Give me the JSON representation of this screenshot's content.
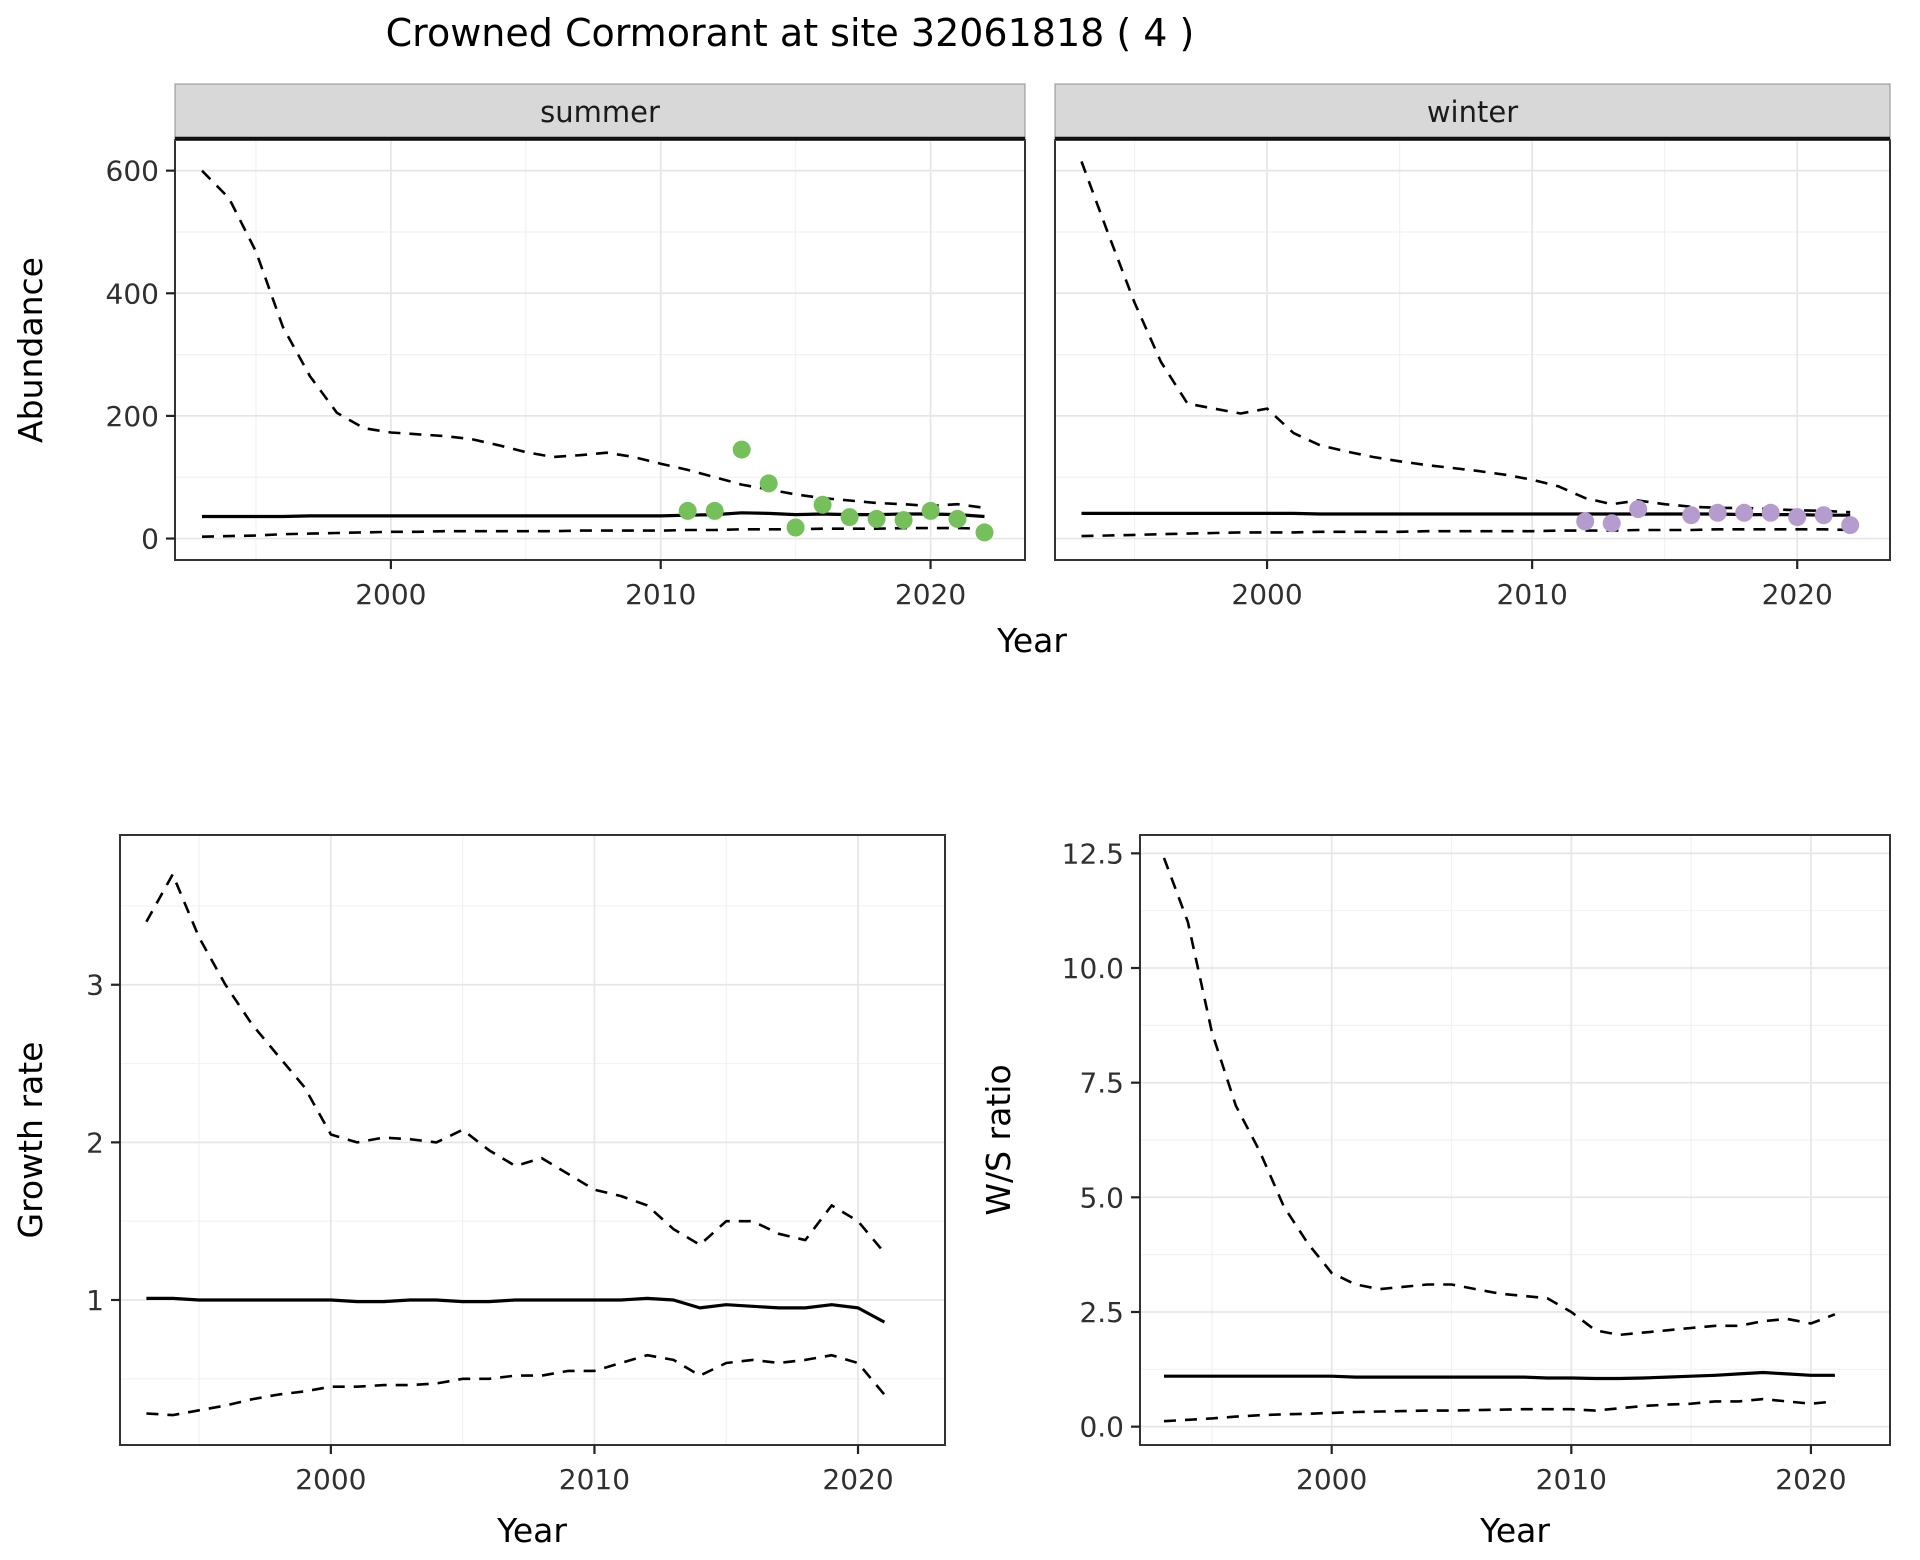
{
  "title": "Crowned Cormorant at site 32061818 ( 4 )",
  "palette": {
    "summer": "#76c05c",
    "winter": "#b59cce",
    "ci_line": "#000000",
    "median_line": "#000000",
    "strip_bg": "#d8d8d8",
    "strip_border": "#8f8f8f",
    "strip_underline": "#111111",
    "panel_bg": "#ffffff",
    "panel_border": "#333333",
    "grid_major": "#e6e6e6",
    "grid_minor": "#f2f2f2",
    "tick_mark": "#222222"
  },
  "chart_data": [
    {
      "id": "abundance-summer",
      "type": "line",
      "facet_label": "summer",
      "xlabel": "Year",
      "ylabel": "Abundance",
      "xlim": [
        1992,
        2023.5
      ],
      "ylim": [
        -35,
        650
      ],
      "xticks": [
        {
          "v": 2000,
          "label": "2000"
        },
        {
          "v": 2010,
          "label": "2010"
        },
        {
          "v": 2020,
          "label": "2020"
        }
      ],
      "yticks": [
        {
          "v": 0,
          "label": "0"
        },
        {
          "v": 200,
          "label": "200"
        },
        {
          "v": 400,
          "label": "400"
        },
        {
          "v": 600,
          "label": "600"
        }
      ],
      "years": [
        1993,
        1994,
        1995,
        1996,
        1997,
        1998,
        1999,
        2000,
        2001,
        2002,
        2003,
        2004,
        2005,
        2006,
        2007,
        2008,
        2009,
        2010,
        2011,
        2012,
        2013,
        2014,
        2015,
        2016,
        2017,
        2018,
        2019,
        2020,
        2021,
        2022
      ],
      "series": [
        {
          "name": "upper-ci",
          "style": "dashed",
          "y": [
            600,
            555,
            468,
            345,
            265,
            205,
            180,
            173,
            170,
            167,
            162,
            152,
            141,
            133,
            136,
            140,
            133,
            122,
            112,
            100,
            88,
            80,
            72,
            66,
            62,
            58,
            56,
            53,
            56,
            50
          ]
        },
        {
          "name": "median",
          "style": "solid",
          "y": [
            36,
            36,
            36,
            36,
            37,
            37,
            37,
            37,
            37,
            37,
            37,
            37,
            37,
            37,
            37,
            37,
            37,
            37,
            38,
            39,
            42,
            41,
            39,
            40,
            39,
            39,
            40,
            40,
            39,
            36
          ]
        },
        {
          "name": "lower-ci",
          "style": "dashed",
          "y": [
            3,
            4,
            5,
            7,
            8,
            9,
            10,
            11,
            11,
            12,
            12,
            12,
            12,
            12,
            13,
            13,
            13,
            13,
            14,
            14,
            15,
            15,
            15,
            16,
            16,
            16,
            17,
            17,
            17,
            16
          ]
        },
        {
          "name": "observed",
          "style": "points",
          "color_key": "summer",
          "x": [
            2011,
            2012,
            2013,
            2014,
            2015,
            2016,
            2017,
            2018,
            2019,
            2020,
            2021,
            2022
          ],
          "y": [
            45,
            45,
            145,
            90,
            18,
            55,
            35,
            32,
            30,
            45,
            32,
            10
          ]
        }
      ]
    },
    {
      "id": "abundance-winter",
      "type": "line",
      "facet_label": "winter",
      "xlabel": "Year",
      "ylabel": "Abundance",
      "xlim": [
        1992,
        2023.5
      ],
      "ylim": [
        -35,
        650
      ],
      "xticks": [
        {
          "v": 2000,
          "label": "2000"
        },
        {
          "v": 2010,
          "label": "2010"
        },
        {
          "v": 2020,
          "label": "2020"
        }
      ],
      "yticks": [
        {
          "v": 0,
          "label": "0"
        },
        {
          "v": 200,
          "label": "200"
        },
        {
          "v": 400,
          "label": "400"
        },
        {
          "v": 600,
          "label": "600"
        }
      ],
      "years": [
        1993,
        1994,
        1995,
        1996,
        1997,
        1998,
        1999,
        2000,
        2001,
        2002,
        2003,
        2004,
        2005,
        2006,
        2007,
        2008,
        2009,
        2010,
        2011,
        2012,
        2013,
        2014,
        2015,
        2016,
        2017,
        2018,
        2019,
        2020,
        2021,
        2022
      ],
      "series": [
        {
          "name": "upper-ci",
          "style": "dashed",
          "y": [
            615,
            498,
            385,
            288,
            220,
            212,
            204,
            212,
            172,
            152,
            142,
            133,
            126,
            120,
            115,
            110,
            104,
            96,
            85,
            66,
            56,
            62,
            56,
            52,
            50,
            50,
            48,
            46,
            45,
            43
          ]
        },
        {
          "name": "median",
          "style": "solid",
          "y": [
            41,
            41,
            41,
            41,
            41,
            41,
            41,
            41,
            41,
            40,
            40,
            40,
            40,
            40,
            40,
            40,
            40,
            40,
            40,
            40,
            40,
            40,
            40,
            40,
            40,
            39,
            39,
            39,
            38,
            38
          ]
        },
        {
          "name": "lower-ci",
          "style": "dashed",
          "y": [
            4,
            5,
            6,
            7,
            8,
            9,
            10,
            10,
            10,
            11,
            11,
            11,
            11,
            12,
            12,
            12,
            12,
            12,
            13,
            13,
            13,
            14,
            14,
            14,
            15,
            15,
            15,
            15,
            15,
            14
          ]
        },
        {
          "name": "observed",
          "style": "points",
          "color_key": "winter",
          "x": [
            2012,
            2013,
            2014,
            2016,
            2017,
            2018,
            2019,
            2020,
            2021,
            2022
          ],
          "y": [
            28,
            25,
            48,
            38,
            42,
            42,
            42,
            35,
            38,
            22
          ]
        }
      ]
    },
    {
      "id": "growth-rate",
      "type": "line",
      "facet_label": null,
      "xlabel": "Year",
      "ylabel": "Growth rate",
      "xlim": [
        1992,
        2023.3
      ],
      "ylim": [
        0.08,
        3.95
      ],
      "xticks": [
        {
          "v": 2000,
          "label": "2000"
        },
        {
          "v": 2010,
          "label": "2010"
        },
        {
          "v": 2020,
          "label": "2020"
        }
      ],
      "yticks": [
        {
          "v": 1,
          "label": "1"
        },
        {
          "v": 2,
          "label": "2"
        },
        {
          "v": 3,
          "label": "3"
        }
      ],
      "years": [
        1993,
        1994,
        1995,
        1996,
        1997,
        1998,
        1999,
        2000,
        2001,
        2002,
        2003,
        2004,
        2005,
        2006,
        2007,
        2008,
        2009,
        2010,
        2011,
        2012,
        2013,
        2014,
        2015,
        2016,
        2017,
        2018,
        2019,
        2020,
        2021
      ],
      "series": [
        {
          "name": "upper-ci",
          "style": "dashed",
          "y": [
            3.4,
            3.7,
            3.3,
            3.0,
            2.75,
            2.55,
            2.35,
            2.05,
            2.0,
            2.03,
            2.02,
            2.0,
            2.08,
            1.95,
            1.85,
            1.9,
            1.8,
            1.7,
            1.66,
            1.6,
            1.45,
            1.35,
            1.5,
            1.5,
            1.42,
            1.38,
            1.6,
            1.5,
            1.3
          ]
        },
        {
          "name": "median",
          "style": "solid",
          "y": [
            1.01,
            1.01,
            1.0,
            1.0,
            1.0,
            1.0,
            1.0,
            1.0,
            0.99,
            0.99,
            1.0,
            1.0,
            0.99,
            0.99,
            1.0,
            1.0,
            1.0,
            1.0,
            1.0,
            1.01,
            1.0,
            0.95,
            0.97,
            0.96,
            0.95,
            0.95,
            0.97,
            0.95,
            0.86
          ]
        },
        {
          "name": "lower-ci",
          "style": "dashed",
          "y": [
            0.28,
            0.27,
            0.3,
            0.33,
            0.37,
            0.4,
            0.42,
            0.45,
            0.45,
            0.46,
            0.46,
            0.47,
            0.5,
            0.5,
            0.52,
            0.52,
            0.55,
            0.55,
            0.6,
            0.65,
            0.62,
            0.52,
            0.6,
            0.62,
            0.6,
            0.62,
            0.65,
            0.6,
            0.4
          ]
        }
      ]
    },
    {
      "id": "ws-ratio",
      "type": "line",
      "facet_label": null,
      "xlabel": "Year",
      "ylabel": "W/S ratio",
      "xlim": [
        1992,
        2023.3
      ],
      "ylim": [
        -0.4,
        12.9
      ],
      "xticks": [
        {
          "v": 2000,
          "label": "2000"
        },
        {
          "v": 2010,
          "label": "2010"
        },
        {
          "v": 2020,
          "label": "2020"
        }
      ],
      "yticks": [
        {
          "v": 0,
          "label": "0.0"
        },
        {
          "v": 2.5,
          "label": "2.5"
        },
        {
          "v": 5,
          "label": "5.0"
        },
        {
          "v": 7.5,
          "label": "7.5"
        },
        {
          "v": 10,
          "label": "10.0"
        },
        {
          "v": 12.5,
          "label": "12.5"
        }
      ],
      "years": [
        1993,
        1994,
        1995,
        1996,
        1997,
        1998,
        1999,
        2000,
        2001,
        2002,
        2003,
        2004,
        2005,
        2006,
        2007,
        2008,
        2009,
        2010,
        2011,
        2012,
        2013,
        2014,
        2015,
        2016,
        2017,
        2018,
        2019,
        2020,
        2021
      ],
      "series": [
        {
          "name": "upper-ci",
          "style": "dashed",
          "y": [
            12.4,
            11.0,
            8.6,
            7.0,
            6.0,
            4.8,
            4.0,
            3.35,
            3.1,
            3.0,
            3.05,
            3.1,
            3.1,
            3.0,
            2.9,
            2.85,
            2.8,
            2.5,
            2.1,
            2.0,
            2.05,
            2.1,
            2.15,
            2.2,
            2.2,
            2.3,
            2.35,
            2.25,
            2.45
          ]
        },
        {
          "name": "median",
          "style": "solid",
          "y": [
            1.1,
            1.1,
            1.1,
            1.1,
            1.1,
            1.1,
            1.1,
            1.1,
            1.08,
            1.08,
            1.08,
            1.08,
            1.08,
            1.08,
            1.08,
            1.08,
            1.06,
            1.06,
            1.05,
            1.05,
            1.06,
            1.08,
            1.1,
            1.12,
            1.15,
            1.18,
            1.15,
            1.12,
            1.12
          ]
        },
        {
          "name": "lower-ci",
          "style": "dashed",
          "y": [
            0.12,
            0.15,
            0.18,
            0.22,
            0.25,
            0.27,
            0.28,
            0.3,
            0.32,
            0.33,
            0.34,
            0.35,
            0.35,
            0.36,
            0.37,
            0.38,
            0.38,
            0.38,
            0.35,
            0.4,
            0.45,
            0.48,
            0.5,
            0.55,
            0.55,
            0.6,
            0.55,
            0.5,
            0.55
          ]
        }
      ]
    }
  ]
}
